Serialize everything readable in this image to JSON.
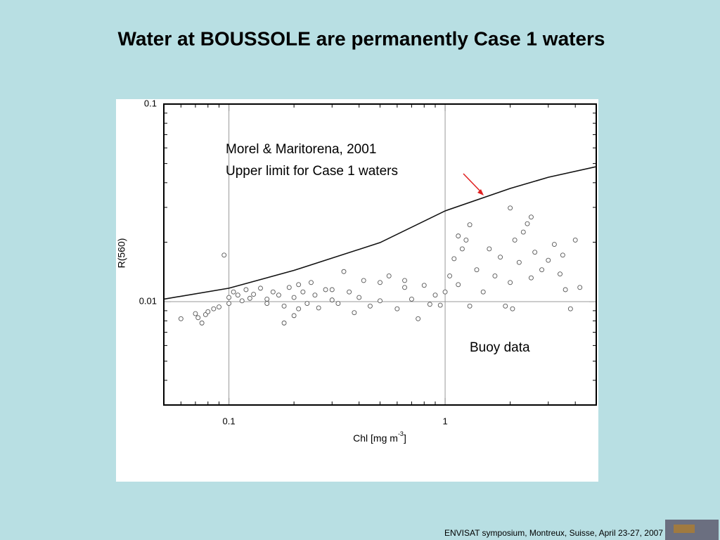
{
  "title": "Water at  BOUSSOLE are permanently Case 1 waters",
  "footer": "ENVISAT symposium, Montreux, Suisse, April 23-27, 2007",
  "chart_data": {
    "type": "scatter",
    "y_label": "R(560)",
    "x_label_parts": [
      "Chl [mg m",
      "-3",
      "]"
    ],
    "annotation": "Morel & Maritorena, 2001",
    "log_x": true,
    "log_y": true,
    "grid": true,
    "xlim": [
      0.05,
      5
    ],
    "ylim": [
      0.003,
      0.1
    ],
    "xticks": [
      0.1,
      1
    ],
    "yticks": [
      0.1,
      0.01
    ],
    "series": [
      {
        "name": "Buoy data",
        "color": "#555555",
        "kind": "scatter",
        "x": [
          0.06,
          0.07,
          0.072,
          0.075,
          0.078,
          0.08,
          0.085,
          0.09,
          0.095,
          0.1,
          0.1,
          0.105,
          0.11,
          0.115,
          0.12,
          0.125,
          0.13,
          0.14,
          0.15,
          0.16,
          0.17,
          0.18,
          0.18,
          0.19,
          0.2,
          0.2,
          0.21,
          0.22,
          0.23,
          0.24,
          0.25,
          0.26,
          0.28,
          0.3,
          0.32,
          0.34,
          0.36,
          0.38,
          0.4,
          0.42,
          0.45,
          0.5,
          0.5,
          0.55,
          0.6,
          0.65,
          0.7,
          0.75,
          0.8,
          0.85,
          0.9,
          0.95,
          1.0,
          1.05,
          1.1,
          1.15,
          1.2,
          1.25,
          1.3,
          1.4,
          1.5,
          1.6,
          1.7,
          1.8,
          1.9,
          2.0,
          2.0,
          2.1,
          2.2,
          2.3,
          2.4,
          2.5,
          2.6,
          2.8,
          3.0,
          3.2,
          3.4,
          3.6,
          3.8,
          4.0,
          4.2,
          0.21,
          1.3,
          2.05,
          2.5,
          0.65,
          1.15,
          3.5,
          0.3,
          0.15
        ],
        "values": [
          0.0082,
          0.0087,
          0.0083,
          0.0078,
          0.0086,
          0.0089,
          0.0092,
          0.0094,
          0.0172,
          0.0105,
          0.0098,
          0.0112,
          0.0108,
          0.0101,
          0.0115,
          0.0104,
          0.0109,
          0.0117,
          0.0103,
          0.0112,
          0.0108,
          0.0095,
          0.0078,
          0.0118,
          0.0085,
          0.0105,
          0.0122,
          0.0112,
          0.0098,
          0.0125,
          0.0108,
          0.0093,
          0.0115,
          0.0102,
          0.0098,
          0.0142,
          0.0112,
          0.0088,
          0.0105,
          0.0128,
          0.0095,
          0.0125,
          0.0101,
          0.0135,
          0.0092,
          0.0118,
          0.0103,
          0.0082,
          0.0121,
          0.0097,
          0.0108,
          0.0096,
          0.0112,
          0.0135,
          0.0165,
          0.0122,
          0.0185,
          0.0205,
          0.0095,
          0.0145,
          0.0112,
          0.0185,
          0.0135,
          0.0168,
          0.0095,
          0.0298,
          0.0125,
          0.0205,
          0.0158,
          0.0225,
          0.0248,
          0.0132,
          0.0178,
          0.0145,
          0.0162,
          0.0195,
          0.0138,
          0.0115,
          0.0092,
          0.0205,
          0.0118,
          0.0092,
          0.0245,
          0.0092,
          0.0268,
          0.0128,
          0.0215,
          0.0172,
          0.0115,
          0.0098
        ]
      },
      {
        "name": "Upper limit for Case 1 waters",
        "color": "#111111",
        "kind": "line",
        "x": [
          0.05,
          0.1,
          0.2,
          0.5,
          1,
          2,
          3,
          5
        ],
        "values": [
          0.0103,
          0.0117,
          0.0144,
          0.0199,
          0.0288,
          0.0374,
          0.0426,
          0.0482
        ]
      }
    ]
  }
}
